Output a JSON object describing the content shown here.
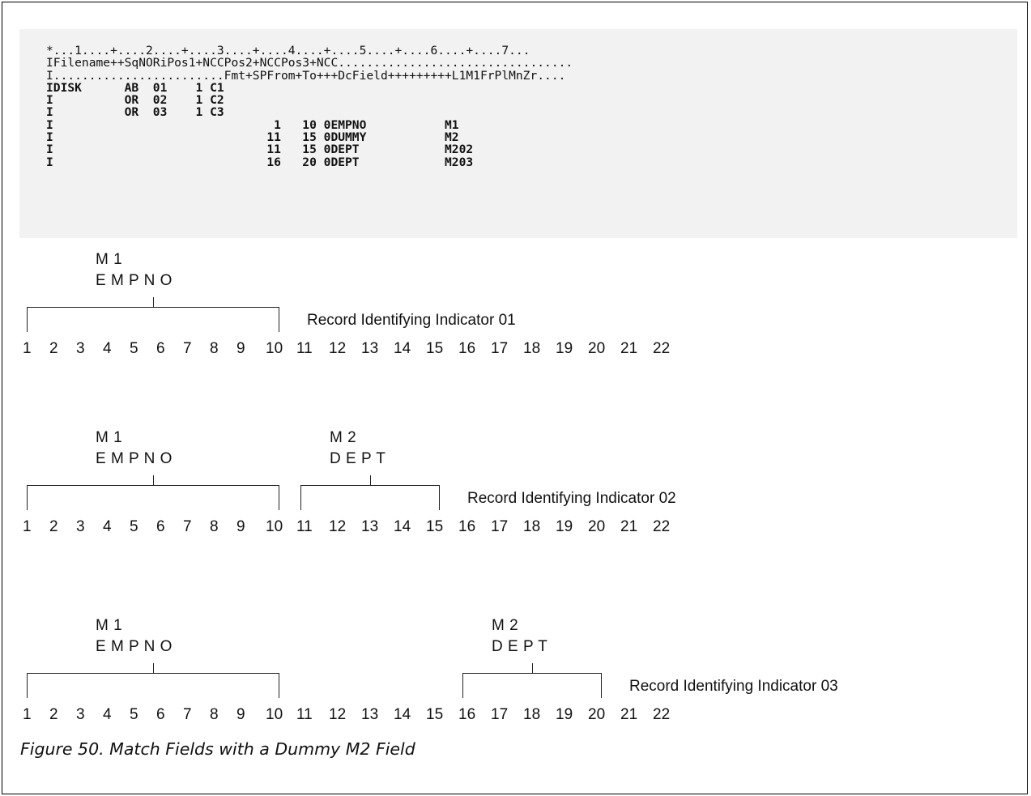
{
  "code": {
    "lines": [
      {
        "text": "*...1....+....2....+....3....+....4....+....5....+....6....+....7...",
        "bold": false
      },
      {
        "text": "IFilename++SqNORiPos1+NCCPos2+NCCPos3+NCC.................................",
        "bold": false
      },
      {
        "text": "I........................Fmt+SPFrom+To+++DcField+++++++++L1M1FrPlMnZr....",
        "bold": false
      },
      {
        "text": "IDISK      AB  01    1 C1",
        "bold": true
      },
      {
        "text": "I          OR  02    1 C2",
        "bold": true
      },
      {
        "text": "I          OR  03    1 C3",
        "bold": true
      },
      {
        "text": "I                               1   10 0EMPNO           M1",
        "bold": true
      },
      {
        "text": "I                              11   15 0DUMMY           M2",
        "bold": true
      },
      {
        "text": "I                              11   15 0DEPT            M202",
        "bold": true
      },
      {
        "text": "I                              16   20 0DEPT            M203",
        "bold": true
      }
    ]
  },
  "positions": [
    "1",
    "2",
    "3",
    "4",
    "5",
    "6",
    "7",
    "8",
    "9",
    "10",
    "11",
    "12",
    "13",
    "14",
    "15",
    "16",
    "17",
    "18",
    "19",
    "20",
    "21",
    "22"
  ],
  "diagrams": [
    {
      "fields": [
        {
          "match": "M 1",
          "name": "E M P N O",
          "from": 1,
          "to": 10
        }
      ],
      "indicator": "Record Identifying Indicator 01"
    },
    {
      "fields": [
        {
          "match": "M 1",
          "name": "E M P N O",
          "from": 1,
          "to": 10
        },
        {
          "match": "M 2",
          "name": "D E P T",
          "from": 11,
          "to": 15
        }
      ],
      "indicator": "Record Identifying Indicator 02"
    },
    {
      "fields": [
        {
          "match": "M 1",
          "name": "E M P N O",
          "from": 1,
          "to": 10
        },
        {
          "match": "M 2",
          "name": "D E P T",
          "from": 16,
          "to": 20
        }
      ],
      "indicator": "Record Identifying Indicator 03"
    }
  ],
  "caption": "Figure 50. Match Fields with a Dummy M2 Field"
}
